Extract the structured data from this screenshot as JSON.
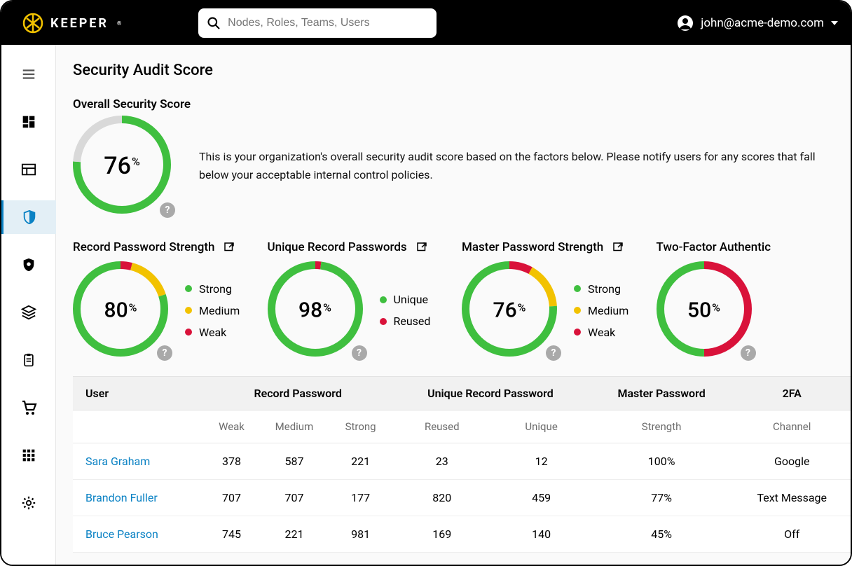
{
  "colors": {
    "accent": "#0b82c4",
    "green": "#3fbf3f",
    "yellow": "#f2c200",
    "red": "#d9123a",
    "grey_track": "#d9d9d9",
    "help_grey": "#a9a9a9",
    "topbar_bg": "#000000",
    "brand_gold": "#f2c200"
  },
  "topbar": {
    "brand": "KEEPER",
    "search_placeholder": "Nodes, Roles, Teams, Users",
    "account_email": "john@acme-demo.com"
  },
  "page": {
    "title": "Security Audit Score",
    "overall_heading": "Overall Security Score",
    "overall_description": "This is your organization's overall security audit score based on the factors below. Please notify users for any scores that fall below your acceptable internal control policies."
  },
  "overall_gauge": {
    "value": 76,
    "size": 140,
    "stroke": 11,
    "segments": [
      {
        "color": "#3fbf3f",
        "from": 0,
        "to": 76
      },
      {
        "color": "#d9d9d9",
        "from": 76,
        "to": 100
      }
    ]
  },
  "cards": [
    {
      "title": "Record Password Strength",
      "value": 80,
      "segments": [
        {
          "color": "#d9123a",
          "from": 0,
          "to": 4
        },
        {
          "color": "#f2c200",
          "from": 4,
          "to": 20
        },
        {
          "color": "#3fbf3f",
          "from": 20,
          "to": 100
        }
      ],
      "legend": [
        {
          "color": "#3fbf3f",
          "label": "Strong"
        },
        {
          "color": "#f2c200",
          "label": "Medium"
        },
        {
          "color": "#d9123a",
          "label": "Weak"
        }
      ],
      "has_popout": true
    },
    {
      "title": "Unique Record Passwords",
      "value": 98,
      "segments": [
        {
          "color": "#d9123a",
          "from": 0,
          "to": 2
        },
        {
          "color": "#3fbf3f",
          "from": 2,
          "to": 100
        }
      ],
      "legend": [
        {
          "color": "#3fbf3f",
          "label": "Unique"
        },
        {
          "color": "#d9123a",
          "label": "Reused"
        }
      ],
      "has_popout": true
    },
    {
      "title": "Master Password Strength",
      "value": 76,
      "segments": [
        {
          "color": "#d9123a",
          "from": 0,
          "to": 8
        },
        {
          "color": "#f2c200",
          "from": 8,
          "to": 24
        },
        {
          "color": "#3fbf3f",
          "from": 24,
          "to": 100
        }
      ],
      "legend": [
        {
          "color": "#3fbf3f",
          "label": "Strong"
        },
        {
          "color": "#f2c200",
          "label": "Medium"
        },
        {
          "color": "#d9123a",
          "label": "Weak"
        }
      ],
      "has_popout": true
    },
    {
      "title": "Two-Factor Authentic",
      "value": 50,
      "segments": [
        {
          "color": "#d9123a",
          "from": 0,
          "to": 50
        },
        {
          "color": "#3fbf3f",
          "from": 50,
          "to": 100
        }
      ],
      "legend": [],
      "has_popout": false
    }
  ],
  "gauge_small": {
    "size": 136,
    "stroke": 11
  },
  "table": {
    "headers1": [
      "User",
      "Record Password",
      "Unique Record Password",
      "Master Password",
      "2FA"
    ],
    "headers2": [
      "",
      "Weak",
      "Medium",
      "Strong",
      "Reused",
      "Unique",
      "Strength",
      "Channel"
    ],
    "rows": [
      {
        "user": "Sara Graham",
        "weak": 378,
        "medium": 587,
        "strong": 221,
        "reused": 23,
        "unique": 12,
        "strength": "100%",
        "channel": "Google"
      },
      {
        "user": "Brandon Fuller",
        "weak": 707,
        "medium": 707,
        "strong": 177,
        "reused": 820,
        "unique": 459,
        "strength": "77%",
        "channel": "Text Message"
      },
      {
        "user": "Bruce Pearson",
        "weak": 745,
        "medium": 221,
        "strong": 981,
        "reused": 169,
        "unique": 140,
        "strength": "45%",
        "channel": "Off"
      }
    ]
  }
}
